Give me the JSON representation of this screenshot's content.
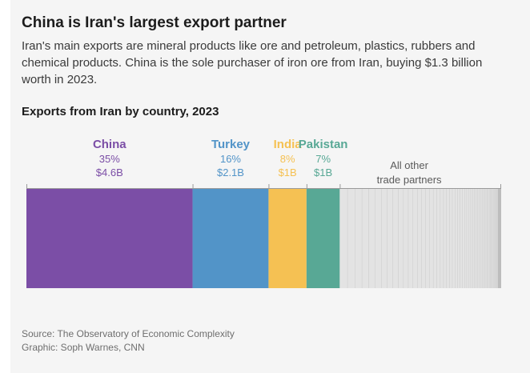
{
  "header": {
    "title": "China is Iran's largest export partner",
    "subtitle": "Iran's main exports are mineral products like ore and petroleum, plastics, rubbers and chemical products. China is the sole purchaser of iron ore from Iran, buying $1.3 billion worth in 2023."
  },
  "chart_data": {
    "type": "bar",
    "subtype": "stacked-share",
    "title": "Exports from Iran by country, 2023",
    "categories": [
      "China",
      "Turkey",
      "India",
      "Pakistan",
      "All other trade partners"
    ],
    "values_pct": [
      35,
      16,
      8,
      7,
      34
    ],
    "pct_labels": [
      "35%",
      "16%",
      "8%",
      "7%",
      ""
    ],
    "value_labels": [
      "$4.6B",
      "$2.1B",
      "$1B",
      "$1B",
      ""
    ],
    "colors": [
      "#7b4ea6",
      "#5294c8",
      "#f5c153",
      "#58a895",
      "#e3e3e3"
    ],
    "other_label_lines": [
      "All other",
      "trade partners"
    ]
  },
  "footer": {
    "source": "Source: The Observatory of Economic Complexity",
    "credit": "Graphic: Soph Warnes, CNN"
  }
}
